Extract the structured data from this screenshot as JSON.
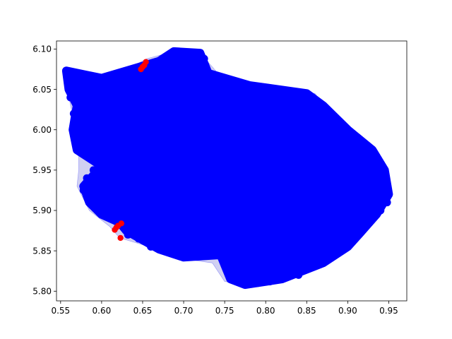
{
  "chart_data": {
    "type": "scatter",
    "title": "",
    "xlabel": "",
    "ylabel": "",
    "xlim": [
      0.545,
      0.972
    ],
    "ylim": [
      5.788,
      6.11
    ],
    "x_ticks": [
      "0.55",
      "0.60",
      "0.65",
      "0.70",
      "0.75",
      "0.80",
      "0.85",
      "0.90",
      "0.95"
    ],
    "y_ticks": [
      "5.80",
      "5.85",
      "5.90",
      "5.95",
      "6.00",
      "6.05",
      "6.10"
    ],
    "grid": false,
    "legend": "none",
    "colors": {
      "hull_fill": "#c8c8f0",
      "hull_edge": "#0000ff",
      "inliers": "#0000ff",
      "outliers": "#ff0000"
    },
    "hull": [
      [
        0.557,
        6.073
      ],
      [
        0.61,
        6.064
      ],
      [
        0.655,
        6.088
      ],
      [
        0.688,
        6.097
      ],
      [
        0.72,
        6.095
      ],
      [
        0.74,
        6.072
      ],
      [
        0.78,
        6.058
      ],
      [
        0.86,
        6.045
      ],
      [
        0.875,
        6.025
      ],
      [
        0.9,
        6.0
      ],
      [
        0.93,
        5.975
      ],
      [
        0.945,
        5.95
      ],
      [
        0.95,
        5.92
      ],
      [
        0.935,
        5.895
      ],
      [
        0.915,
        5.872
      ],
      [
        0.9,
        5.855
      ],
      [
        0.87,
        5.835
      ],
      [
        0.82,
        5.815
      ],
      [
        0.775,
        5.808
      ],
      [
        0.75,
        5.812
      ],
      [
        0.735,
        5.835
      ],
      [
        0.7,
        5.84
      ],
      [
        0.668,
        5.852
      ],
      [
        0.622,
        5.866
      ],
      [
        0.61,
        5.88
      ],
      [
        0.585,
        5.9
      ],
      [
        0.57,
        5.93
      ],
      [
        0.572,
        5.95
      ],
      [
        0.572,
        5.985
      ],
      [
        0.56,
        6.04
      ]
    ],
    "inlier_core": [
      [
        0.557,
        6.073
      ],
      [
        0.6,
        6.064
      ],
      [
        0.67,
        6.085
      ],
      [
        0.688,
        6.097
      ],
      [
        0.72,
        6.095
      ],
      [
        0.73,
        6.07
      ],
      [
        0.78,
        6.055
      ],
      [
        0.85,
        6.045
      ],
      [
        0.87,
        6.03
      ],
      [
        0.9,
        6.0
      ],
      [
        0.93,
        5.975
      ],
      [
        0.945,
        5.95
      ],
      [
        0.95,
        5.92
      ],
      [
        0.935,
        5.895
      ],
      [
        0.915,
        5.872
      ],
      [
        0.9,
        5.855
      ],
      [
        0.87,
        5.835
      ],
      [
        0.82,
        5.815
      ],
      [
        0.775,
        5.808
      ],
      [
        0.757,
        5.815
      ],
      [
        0.745,
        5.845
      ],
      [
        0.7,
        5.842
      ],
      [
        0.67,
        5.852
      ],
      [
        0.63,
        5.875
      ],
      [
        0.622,
        5.885
      ],
      [
        0.6,
        5.895
      ],
      [
        0.585,
        5.91
      ],
      [
        0.578,
        5.93
      ],
      [
        0.6,
        5.955
      ],
      [
        0.57,
        5.975
      ],
      [
        0.565,
        6.0
      ],
      [
        0.57,
        6.03
      ],
      [
        0.56,
        6.05
      ]
    ],
    "inlier_fringe": [
      [
        0.558,
        6.068
      ],
      [
        0.566,
        6.06
      ],
      [
        0.575,
        6.055
      ],
      [
        0.59,
        6.05
      ],
      [
        0.6,
        6.05
      ],
      [
        0.61,
        6.055
      ],
      [
        0.62,
        6.045
      ],
      [
        0.63,
        6.038
      ],
      [
        0.64,
        6.05
      ],
      [
        0.658,
        6.07
      ],
      [
        0.668,
        6.08
      ],
      [
        0.678,
        6.088
      ],
      [
        0.7,
        6.09
      ],
      [
        0.71,
        6.085
      ],
      [
        0.725,
        6.088
      ],
      [
        0.74,
        6.06
      ],
      [
        0.76,
        6.058
      ],
      [
        0.79,
        6.048
      ],
      [
        0.81,
        6.04
      ],
      [
        0.83,
        6.04
      ],
      [
        0.855,
        6.04
      ],
      [
        0.87,
        6.02
      ],
      [
        0.88,
        6.01
      ],
      [
        0.9,
        5.995
      ],
      [
        0.918,
        5.985
      ],
      [
        0.935,
        5.965
      ],
      [
        0.945,
        5.94
      ],
      [
        0.948,
        5.91
      ],
      [
        0.94,
        5.9
      ],
      [
        0.925,
        5.885
      ],
      [
        0.905,
        5.865
      ],
      [
        0.885,
        5.85
      ],
      [
        0.86,
        5.835
      ],
      [
        0.84,
        5.82
      ],
      [
        0.805,
        5.812
      ],
      [
        0.79,
        5.81
      ],
      [
        0.765,
        5.812
      ],
      [
        0.74,
        5.85
      ],
      [
        0.72,
        5.845
      ],
      [
        0.69,
        5.848
      ],
      [
        0.66,
        5.855
      ],
      [
        0.645,
        5.865
      ],
      [
        0.632,
        5.87
      ],
      [
        0.625,
        5.885
      ],
      [
        0.615,
        5.892
      ],
      [
        0.605,
        5.9
      ],
      [
        0.59,
        5.905
      ],
      [
        0.583,
        5.915
      ],
      [
        0.578,
        5.925
      ],
      [
        0.582,
        5.94
      ],
      [
        0.59,
        5.95
      ],
      [
        0.605,
        5.958
      ],
      [
        0.585,
        5.965
      ],
      [
        0.572,
        5.99
      ],
      [
        0.575,
        6.01
      ],
      [
        0.566,
        6.02
      ],
      [
        0.562,
        6.04
      ],
      [
        0.572,
        6.045
      ]
    ],
    "outliers": [
      [
        0.65,
        6.078
      ],
      [
        0.652,
        6.08
      ],
      [
        0.654,
        6.084
      ],
      [
        0.648,
        6.075
      ],
      [
        0.616,
        5.876
      ],
      [
        0.62,
        5.881
      ],
      [
        0.624,
        5.884
      ],
      [
        0.618,
        5.879
      ],
      [
        0.623,
        5.866
      ]
    ]
  }
}
